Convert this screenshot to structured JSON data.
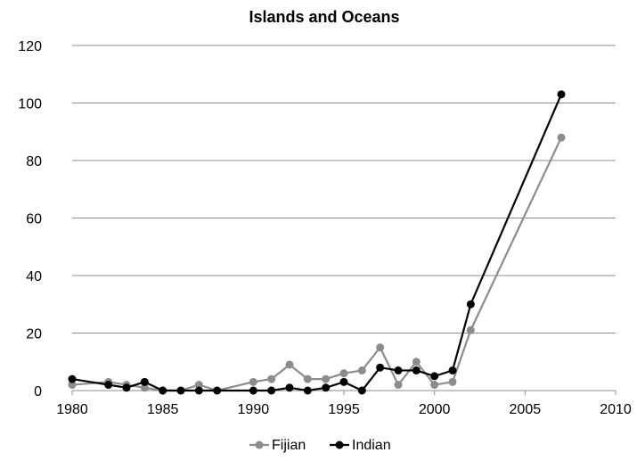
{
  "chart_data": {
    "type": "line",
    "title": "Islands and Oceans",
    "xlabel": "",
    "ylabel": "",
    "xlim": [
      1980,
      2010
    ],
    "ylim": [
      0,
      120
    ],
    "xticks": [
      1980,
      1985,
      1990,
      1995,
      2000,
      2005,
      2010
    ],
    "yticks": [
      0,
      20,
      40,
      60,
      80,
      100,
      120
    ],
    "grid": "horizontal",
    "legend_position": "bottom",
    "series": [
      {
        "name": "Fijian",
        "color": "#8c8c8c",
        "x": [
          1980,
          1982,
          1983,
          1984,
          1985,
          1986,
          1987,
          1988,
          1990,
          1991,
          1992,
          1993,
          1994,
          1995,
          1996,
          1997,
          1998,
          1999,
          2000,
          2001,
          2002,
          2007
        ],
        "y": [
          2,
          3,
          2,
          1,
          0,
          0,
          2,
          0,
          3,
          4,
          9,
          4,
          4,
          6,
          7,
          15,
          2,
          10,
          2,
          3,
          21,
          88
        ]
      },
      {
        "name": "Indian",
        "color": "#000000",
        "x": [
          1980,
          1982,
          1983,
          1984,
          1985,
          1986,
          1987,
          1988,
          1990,
          1991,
          1992,
          1993,
          1994,
          1995,
          1996,
          1997,
          1998,
          1999,
          2000,
          2001,
          2002,
          2007
        ],
        "y": [
          4,
          2,
          1,
          3,
          0,
          0,
          0,
          0,
          0,
          0,
          1,
          0,
          1,
          3,
          0,
          8,
          7,
          7,
          5,
          7,
          30,
          103
        ]
      }
    ]
  }
}
